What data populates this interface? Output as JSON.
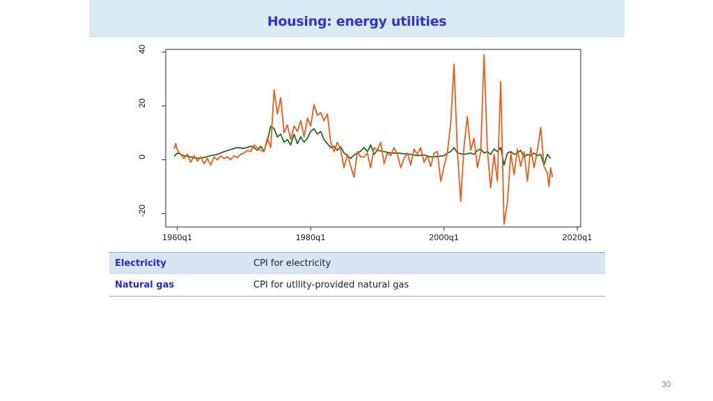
{
  "slide": {
    "title": "Housing: energy utilities",
    "page_number": "30"
  },
  "legend_table": [
    {
      "name": "Electricity",
      "description": "CPI for electricity"
    },
    {
      "name": "Natural gas",
      "description": "CPI for utllity-provided natural gas"
    }
  ],
  "chart_data": {
    "type": "line",
    "title": "",
    "xlabel": "",
    "ylabel": "",
    "xlim": [
      1958.25,
      2020.5
    ],
    "ylim": [
      -25,
      41
    ],
    "x_ticks": [
      {
        "value": 1960.0,
        "label": "1960q1"
      },
      {
        "value": 1980.0,
        "label": "1980q1"
      },
      {
        "value": 2000.0,
        "label": "2000q1"
      },
      {
        "value": 2020.0,
        "label": "2020q1"
      }
    ],
    "y_ticks": [
      {
        "value": 40,
        "label": "40"
      },
      {
        "value": 20,
        "label": "20"
      },
      {
        "value": 0,
        "label": "0"
      },
      {
        "value": -20,
        "label": "-20"
      }
    ],
    "grid": false,
    "colors": {
      "electricity": "#1a6b1a",
      "natural_gas": "#f15a16"
    },
    "series": [
      {
        "key": "electricity",
        "points": [
          [
            1959.5,
            1.2
          ],
          [
            1960.0,
            2.5
          ],
          [
            1961.0,
            1.5
          ],
          [
            1962.0,
            1.0
          ],
          [
            1963.0,
            0.5
          ],
          [
            1964.0,
            0.8
          ],
          [
            1965.0,
            1.5
          ],
          [
            1966.0,
            2.0
          ],
          [
            1967.0,
            3.0
          ],
          [
            1968.0,
            3.8
          ],
          [
            1969.0,
            4.5
          ],
          [
            1970.0,
            4.2
          ],
          [
            1971.0,
            5.0
          ],
          [
            1971.5,
            4.5
          ],
          [
            1972.0,
            3.5
          ],
          [
            1972.5,
            5.0
          ],
          [
            1973.0,
            3.2
          ],
          [
            1973.5,
            7.0
          ],
          [
            1974.0,
            12.5
          ],
          [
            1974.5,
            11.5
          ],
          [
            1975.0,
            8.5
          ],
          [
            1975.5,
            9.5
          ],
          [
            1976.0,
            6.5
          ],
          [
            1976.5,
            7.5
          ],
          [
            1977.0,
            5.5
          ],
          [
            1977.5,
            9.5
          ],
          [
            1978.0,
            6.0
          ],
          [
            1978.5,
            8.5
          ],
          [
            1979.0,
            6.5
          ],
          [
            1979.5,
            8.0
          ],
          [
            1980.0,
            10.5
          ],
          [
            1980.5,
            11.5
          ],
          [
            1981.0,
            9.5
          ],
          [
            1981.5,
            10.5
          ],
          [
            1982.0,
            7.5
          ],
          [
            1982.5,
            6.0
          ],
          [
            1983.0,
            4.5
          ],
          [
            1983.5,
            5.0
          ],
          [
            1984.0,
            3.5
          ],
          [
            1984.5,
            4.8
          ],
          [
            1985.0,
            2.5
          ],
          [
            1985.5,
            1.5
          ],
          [
            1986.0,
            0.5
          ],
          [
            1986.5,
            1.8
          ],
          [
            1987.0,
            2.5
          ],
          [
            1987.5,
            3.2
          ],
          [
            1988.0,
            4.5
          ],
          [
            1988.5,
            3.0
          ],
          [
            1989.0,
            5.5
          ],
          [
            1989.5,
            2.0
          ],
          [
            1990.0,
            3.5
          ],
          [
            1991.0,
            3.0
          ],
          [
            1992.0,
            2.5
          ],
          [
            1993.0,
            2.5
          ],
          [
            1994.0,
            2.2
          ],
          [
            1995.0,
            2.0
          ],
          [
            1996.0,
            1.5
          ],
          [
            1997.0,
            1.8
          ],
          [
            1998.0,
            1.0
          ],
          [
            1999.0,
            1.2
          ],
          [
            2000.0,
            1.5
          ],
          [
            2000.5,
            2.5
          ],
          [
            2001.0,
            3.0
          ],
          [
            2001.5,
            4.5
          ],
          [
            2002.0,
            2.5
          ],
          [
            2003.0,
            2.0
          ],
          [
            2004.0,
            2.5
          ],
          [
            2004.5,
            2.0
          ],
          [
            2005.0,
            3.5
          ],
          [
            2005.5,
            4.0
          ],
          [
            2006.0,
            2.5
          ],
          [
            2006.5,
            3.0
          ],
          [
            2007.0,
            2.0
          ],
          [
            2007.5,
            4.0
          ],
          [
            2008.0,
            3.0
          ],
          [
            2008.5,
            4.5
          ],
          [
            2009.0,
            -2.0
          ],
          [
            2009.5,
            2.5
          ],
          [
            2010.0,
            3.0
          ],
          [
            2010.5,
            2.0
          ],
          [
            2011.0,
            2.5
          ],
          [
            2011.5,
            3.5
          ],
          [
            2012.0,
            1.0
          ],
          [
            2012.5,
            2.0
          ],
          [
            2013.0,
            1.5
          ],
          [
            2013.5,
            2.5
          ],
          [
            2014.0,
            1.5
          ],
          [
            2014.5,
            2.0
          ],
          [
            2015.0,
            -2.0
          ],
          [
            2015.5,
            2.0
          ],
          [
            2016.0,
            0.5
          ]
        ]
      },
      {
        "key": "natural_gas",
        "points": [
          [
            1959.5,
            4.0
          ],
          [
            1959.75,
            6.0
          ],
          [
            1960.0,
            3.5
          ],
          [
            1960.5,
            2.0
          ],
          [
            1961.0,
            0.5
          ],
          [
            1961.5,
            2.0
          ],
          [
            1962.0,
            -1.0
          ],
          [
            1962.5,
            1.5
          ],
          [
            1963.0,
            -0.5
          ],
          [
            1963.5,
            1.0
          ],
          [
            1964.0,
            -1.5
          ],
          [
            1964.5,
            0.5
          ],
          [
            1965.0,
            -2.0
          ],
          [
            1965.5,
            1.0
          ],
          [
            1966.0,
            0.0
          ],
          [
            1966.5,
            1.5
          ],
          [
            1967.0,
            0.5
          ],
          [
            1967.5,
            1.0
          ],
          [
            1968.0,
            0.0
          ],
          [
            1968.5,
            1.5
          ],
          [
            1969.0,
            0.8
          ],
          [
            1969.5,
            2.0
          ],
          [
            1970.0,
            2.5
          ],
          [
            1970.5,
            3.5
          ],
          [
            1971.0,
            3.0
          ],
          [
            1971.5,
            5.5
          ],
          [
            1972.0,
            4.5
          ],
          [
            1972.5,
            3.5
          ],
          [
            1973.0,
            3.0
          ],
          [
            1973.5,
            8.0
          ],
          [
            1974.0,
            4.5
          ],
          [
            1974.5,
            26.0
          ],
          [
            1975.0,
            17.0
          ],
          [
            1975.5,
            23.0
          ],
          [
            1976.0,
            10.0
          ],
          [
            1976.5,
            13.0
          ],
          [
            1977.0,
            7.5
          ],
          [
            1977.5,
            12.5
          ],
          [
            1978.0,
            10.5
          ],
          [
            1978.5,
            14.5
          ],
          [
            1979.0,
            8.5
          ],
          [
            1979.5,
            15.5
          ],
          [
            1980.0,
            12.5
          ],
          [
            1980.5,
            20.5
          ],
          [
            1981.0,
            16.5
          ],
          [
            1981.5,
            17.5
          ],
          [
            1982.0,
            14.5
          ],
          [
            1982.5,
            17.0
          ],
          [
            1983.0,
            6.5
          ],
          [
            1983.5,
            3.0
          ],
          [
            1984.0,
            6.5
          ],
          [
            1984.5,
            3.5
          ],
          [
            1985.0,
            -3.0
          ],
          [
            1985.5,
            2.0
          ],
          [
            1986.0,
            -2.5
          ],
          [
            1986.5,
            -6.5
          ],
          [
            1987.0,
            3.0
          ],
          [
            1987.5,
            1.0
          ],
          [
            1988.0,
            1.0
          ],
          [
            1988.5,
            2.5
          ],
          [
            1989.0,
            -3.0
          ],
          [
            1989.5,
            4.5
          ],
          [
            1990.0,
            3.5
          ],
          [
            1990.5,
            6.5
          ],
          [
            1991.0,
            -1.5
          ],
          [
            1991.5,
            2.5
          ],
          [
            1992.0,
            1.5
          ],
          [
            1992.5,
            4.5
          ],
          [
            1993.0,
            2.0
          ],
          [
            1993.5,
            -3.0
          ],
          [
            1994.0,
            0.5
          ],
          [
            1994.5,
            2.5
          ],
          [
            1995.0,
            -2.0
          ],
          [
            1995.5,
            4.0
          ],
          [
            1996.0,
            2.0
          ],
          [
            1996.5,
            4.5
          ],
          [
            1997.0,
            -1.0
          ],
          [
            1997.5,
            1.5
          ],
          [
            1998.0,
            -2.5
          ],
          [
            1998.5,
            2.5
          ],
          [
            1999.0,
            3.0
          ],
          [
            1999.5,
            -8.0
          ],
          [
            2000.0,
            -2.5
          ],
          [
            2000.5,
            2.5
          ],
          [
            2001.0,
            13.5
          ],
          [
            2001.5,
            35.5
          ],
          [
            2002.0,
            3.0
          ],
          [
            2002.5,
            -15.5
          ],
          [
            2003.0,
            5.0
          ],
          [
            2003.5,
            16.0
          ],
          [
            2004.0,
            3.5
          ],
          [
            2004.5,
            8.0
          ],
          [
            2005.0,
            -3.0
          ],
          [
            2005.5,
            3.0
          ],
          [
            2006.0,
            39.0
          ],
          [
            2006.5,
            3.5
          ],
          [
            2007.0,
            -10.5
          ],
          [
            2007.5,
            2.0
          ],
          [
            2008.0,
            -8.0
          ],
          [
            2008.5,
            29.0
          ],
          [
            2009.0,
            -24.0
          ],
          [
            2009.5,
            -16.0
          ],
          [
            2010.0,
            2.5
          ],
          [
            2010.5,
            -5.5
          ],
          [
            2011.0,
            4.0
          ],
          [
            2011.5,
            -2.5
          ],
          [
            2012.0,
            3.0
          ],
          [
            2012.5,
            -8.0
          ],
          [
            2013.0,
            4.5
          ],
          [
            2013.5,
            -3.0
          ],
          [
            2014.0,
            3.5
          ],
          [
            2014.5,
            12.0
          ],
          [
            2015.0,
            -2.5
          ],
          [
            2015.5,
            -5.0
          ],
          [
            2015.75,
            -10.0
          ],
          [
            2016.0,
            -3.0
          ],
          [
            2016.25,
            -6.5
          ]
        ]
      }
    ]
  }
}
